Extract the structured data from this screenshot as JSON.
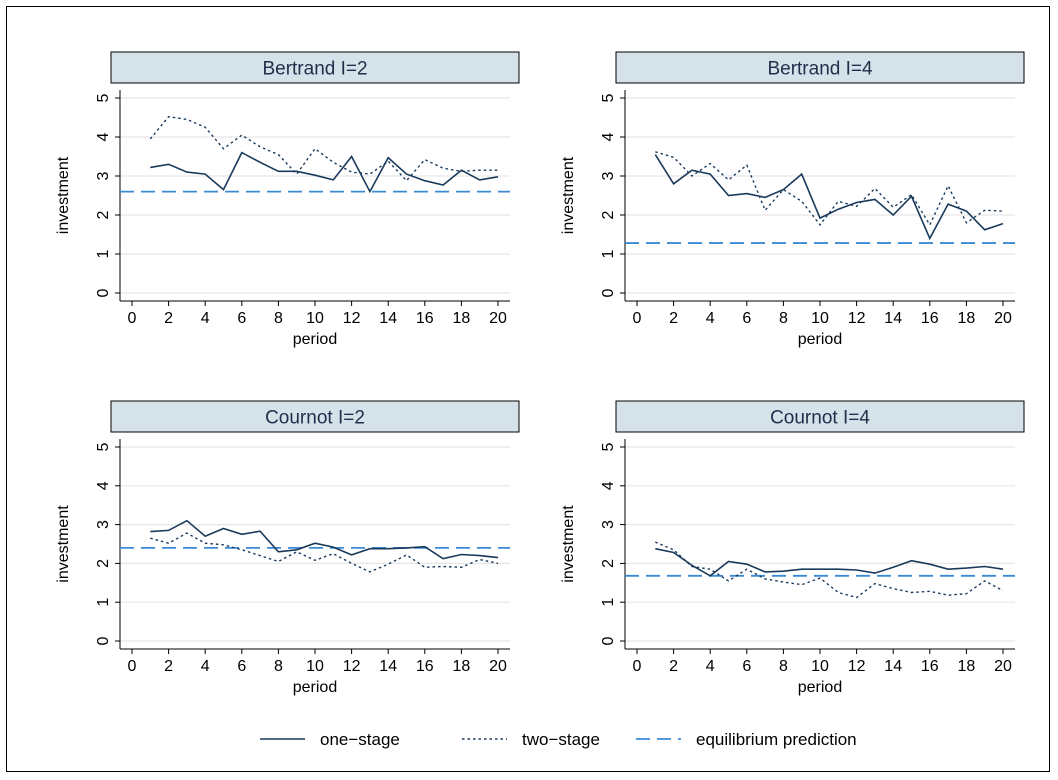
{
  "chart_data": [
    {
      "type": "line",
      "title": "Bertrand I=2",
      "xlabel": "period",
      "ylabel": "investment",
      "xlim": [
        0,
        20
      ],
      "ylim": [
        0,
        5
      ],
      "xticks": [
        "0",
        "2",
        "4",
        "6",
        "8",
        "10",
        "12",
        "14",
        "16",
        "18",
        "20"
      ],
      "yticks": [
        "0",
        "1",
        "2",
        "3",
        "4",
        "5"
      ],
      "grid": true,
      "series": [
        {
          "name": "one-stage",
          "x": [
            1,
            2,
            3,
            4,
            5,
            6,
            7,
            8,
            9,
            10,
            11,
            12,
            13,
            14,
            15,
            16,
            17,
            18,
            19,
            20
          ],
          "values": [
            3.22,
            3.3,
            3.1,
            3.05,
            2.65,
            3.6,
            3.35,
            3.12,
            3.12,
            3.02,
            2.9,
            3.5,
            2.6,
            3.47,
            3.05,
            2.88,
            2.77,
            3.15,
            2.9,
            2.98
          ]
        },
        {
          "name": "two-stage",
          "x": [
            1,
            2,
            3,
            4,
            5,
            6,
            7,
            8,
            9,
            10,
            11,
            12,
            13,
            14,
            15,
            16,
            17,
            18,
            19,
            20
          ],
          "values": [
            3.95,
            4.52,
            4.45,
            4.25,
            3.7,
            4.05,
            3.75,
            3.55,
            3.05,
            3.7,
            3.35,
            3.1,
            3.05,
            3.38,
            2.88,
            3.42,
            3.2,
            3.12,
            3.15,
            3.15
          ]
        }
      ],
      "equilibrium": 2.6
    },
    {
      "type": "line",
      "title": "Bertrand I=4",
      "xlabel": "period",
      "ylabel": "investment",
      "xlim": [
        0,
        20
      ],
      "ylim": [
        0,
        5
      ],
      "xticks": [
        "0",
        "2",
        "4",
        "6",
        "8",
        "10",
        "12",
        "14",
        "16",
        "18",
        "20"
      ],
      "yticks": [
        "0",
        "1",
        "2",
        "3",
        "4",
        "5"
      ],
      "grid": true,
      "series": [
        {
          "name": "one-stage",
          "x": [
            1,
            2,
            3,
            4,
            5,
            6,
            7,
            8,
            9,
            10,
            11,
            12,
            13,
            14,
            15,
            16,
            17,
            18,
            19,
            20
          ],
          "values": [
            3.55,
            2.8,
            3.15,
            3.05,
            2.5,
            2.55,
            2.45,
            2.65,
            3.05,
            1.92,
            2.15,
            2.32,
            2.4,
            2.0,
            2.48,
            1.4,
            2.28,
            2.1,
            1.62,
            1.78
          ]
        },
        {
          "name": "two-stage",
          "x": [
            1,
            2,
            3,
            4,
            5,
            6,
            7,
            8,
            9,
            10,
            11,
            12,
            13,
            14,
            15,
            16,
            17,
            18,
            19,
            20
          ],
          "values": [
            3.62,
            3.48,
            3.0,
            3.32,
            2.9,
            3.28,
            2.12,
            2.65,
            2.35,
            1.75,
            2.35,
            2.22,
            2.68,
            2.2,
            2.52,
            1.75,
            2.75,
            1.8,
            2.12,
            2.1
          ]
        }
      ],
      "equilibrium": 1.28
    },
    {
      "type": "line",
      "title": "Cournot I=2",
      "xlabel": "period",
      "ylabel": "investment",
      "xlim": [
        0,
        20
      ],
      "ylim": [
        0,
        5
      ],
      "xticks": [
        "0",
        "2",
        "4",
        "6",
        "8",
        "10",
        "12",
        "14",
        "16",
        "18",
        "20"
      ],
      "yticks": [
        "0",
        "1",
        "2",
        "3",
        "4",
        "5"
      ],
      "grid": true,
      "series": [
        {
          "name": "one-stage",
          "x": [
            1,
            2,
            3,
            4,
            5,
            6,
            7,
            8,
            9,
            10,
            11,
            12,
            13,
            14,
            15,
            16,
            17,
            18,
            19,
            20
          ],
          "values": [
            2.82,
            2.85,
            3.1,
            2.7,
            2.9,
            2.75,
            2.83,
            2.3,
            2.35,
            2.52,
            2.42,
            2.22,
            2.38,
            2.38,
            2.4,
            2.43,
            2.12,
            2.23,
            2.2,
            2.15
          ]
        },
        {
          "name": "two-stage",
          "x": [
            1,
            2,
            3,
            4,
            5,
            6,
            7,
            8,
            9,
            10,
            11,
            12,
            13,
            14,
            15,
            16,
            17,
            18,
            19,
            20
          ],
          "values": [
            2.65,
            2.52,
            2.78,
            2.52,
            2.48,
            2.35,
            2.2,
            2.05,
            2.3,
            2.08,
            2.25,
            2.0,
            1.78,
            1.98,
            2.22,
            1.9,
            1.92,
            1.9,
            2.1,
            2.0
          ]
        }
      ],
      "equilibrium": 2.4
    },
    {
      "type": "line",
      "title": "Cournot I=4",
      "xlabel": "period",
      "ylabel": "investment",
      "xlim": [
        0,
        20
      ],
      "ylim": [
        0,
        5
      ],
      "xticks": [
        "0",
        "2",
        "4",
        "6",
        "8",
        "10",
        "12",
        "14",
        "16",
        "18",
        "20"
      ],
      "yticks": [
        "0",
        "1",
        "2",
        "3",
        "4",
        "5"
      ],
      "grid": true,
      "series": [
        {
          "name": "one-stage",
          "x": [
            1,
            2,
            3,
            4,
            5,
            6,
            7,
            8,
            9,
            10,
            11,
            12,
            13,
            14,
            15,
            16,
            17,
            18,
            19,
            20
          ],
          "values": [
            2.38,
            2.28,
            1.95,
            1.68,
            2.05,
            1.98,
            1.78,
            1.8,
            1.85,
            1.85,
            1.85,
            1.83,
            1.75,
            1.9,
            2.07,
            1.98,
            1.85,
            1.88,
            1.92,
            1.85
          ]
        },
        {
          "name": "two-stage",
          "x": [
            1,
            2,
            3,
            4,
            5,
            6,
            7,
            8,
            9,
            10,
            11,
            12,
            13,
            14,
            15,
            16,
            17,
            18,
            19,
            20
          ],
          "values": [
            2.55,
            2.35,
            1.92,
            1.85,
            1.55,
            1.85,
            1.6,
            1.52,
            1.45,
            1.62,
            1.25,
            1.12,
            1.48,
            1.35,
            1.25,
            1.28,
            1.18,
            1.22,
            1.55,
            1.3
          ]
        }
      ],
      "equilibrium": 1.68
    }
  ],
  "legend": {
    "items": [
      {
        "label": "one−stage",
        "style": "solid"
      },
      {
        "label": "two−stage",
        "style": "dotted"
      },
      {
        "label": "equilibrium prediction",
        "style": "dashed"
      }
    ]
  },
  "colors": {
    "series_line": "#1a3a5c",
    "equilibrium_line": "#3a8ad6",
    "title_band": "#d6e2ea",
    "grid": "#e6e6e6"
  }
}
